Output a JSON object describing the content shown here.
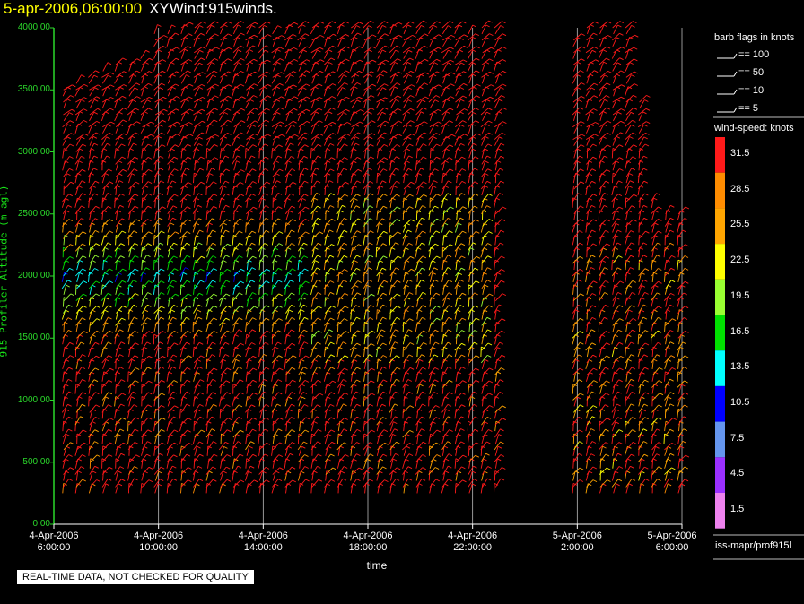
{
  "header": {
    "timestamp": "5-apr-2006,06:00:00",
    "product": "XYWind:915winds."
  },
  "chart_data": {
    "type": "scatter",
    "marker": "wind-barb",
    "ylabel": "915 Profiler Altitude (m agl)",
    "xlabel": "time",
    "ylim": [
      0,
      4000
    ],
    "y_ticks": [
      "0.00",
      "500.00",
      "1000.00",
      "1500.00",
      "2000.00",
      "2500.00",
      "3000.00",
      "3500.00",
      "4000.00"
    ],
    "y_tick_values": [
      0,
      500,
      1000,
      1500,
      2000,
      2500,
      3000,
      3500,
      4000
    ],
    "x_range_hours": [
      0,
      24
    ],
    "x_ticks": [
      {
        "h": 0,
        "date": "4-Apr-2006",
        "time": "6:00:00"
      },
      {
        "h": 4,
        "date": "4-Apr-2006",
        "time": "10:00:00"
      },
      {
        "h": 8,
        "date": "4-Apr-2006",
        "time": "14:00:00"
      },
      {
        "h": 12,
        "date": "4-Apr-2006",
        "time": "18:00:00"
      },
      {
        "h": 16,
        "date": "4-Apr-2006",
        "time": "22:00:00"
      },
      {
        "h": 20,
        "date": "5-Apr-2006",
        "time": "2:00:00"
      },
      {
        "h": 24,
        "date": "5-Apr-2006",
        "time": "6:00:00"
      }
    ],
    "grid": true,
    "columns_hours_start": 0.35,
    "columns_hours_step": 0.5,
    "columns_count": 48,
    "column_gaps_hours": [
      [
        17.1,
        18.6
      ]
    ],
    "lowest_altitude": 250,
    "level_step": 50,
    "column_tops": [
      3500,
      3550,
      3600,
      3650,
      3700,
      3700,
      3750,
      3950,
      3950,
      4000,
      4000,
      4000,
      4000,
      4000,
      4000,
      4000,
      3950,
      4000,
      4000,
      4000,
      4000,
      4000,
      4000,
      4000,
      4000,
      4000,
      4000,
      4000,
      4000,
      4000,
      4000,
      3950,
      4000,
      4000,
      3900,
      2700,
      0,
      0,
      0,
      3900,
      4000,
      4000,
      4000,
      4000,
      3400,
      2600,
      2500,
      2500
    ],
    "slow_zone": {
      "hours": [
        0.3,
        9.5
      ],
      "altitudes": [
        1500,
        2400
      ]
    },
    "medium_zone": {
      "hours": [
        9.5,
        16.5
      ],
      "altitudes": [
        1300,
        2600
      ]
    },
    "late_zone": {
      "hours": [
        19.5,
        24
      ],
      "altitudes": [
        300,
        2200
      ]
    },
    "colorbar": {
      "title": "wind-speed: knots",
      "labels": [
        "31.5",
        "28.5",
        "25.5",
        "22.5",
        "19.5",
        "16.5",
        "13.5",
        "10.5",
        "7.5",
        "4.5",
        "1.5"
      ],
      "values": [
        31.5,
        28.5,
        25.5,
        22.5,
        19.5,
        16.5,
        13.5,
        10.5,
        7.5,
        4.5,
        1.5
      ],
      "colors": [
        "#ff1a1a",
        "#ff8c00",
        "#ffa500",
        "#ffff00",
        "#9aff32",
        "#00e000",
        "#00ffff",
        "#0000ff",
        "#6495ed",
        "#9b30ff",
        "#ee82ee"
      ]
    },
    "barb_legend": {
      "title": "barb flags in knots",
      "items": [
        "== 100",
        "== 50",
        "== 10",
        "== 5"
      ]
    },
    "source": "iss-mapr/prof915l"
  },
  "notice": "REAL-TIME DATA, NOT CHECKED FOR QUALITY"
}
